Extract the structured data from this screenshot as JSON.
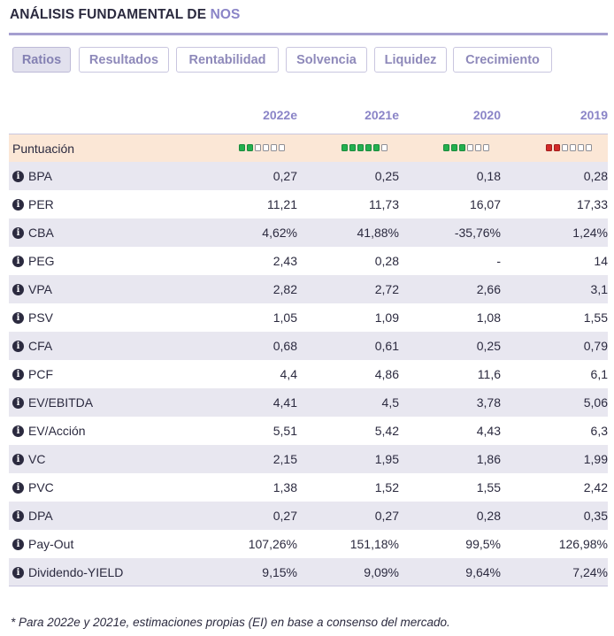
{
  "header": {
    "title": "ANÁLISIS FUNDAMENTAL DE",
    "ticker": "NOS"
  },
  "tabs": [
    "Ratios",
    "Resultados",
    "Rentabilidad",
    "Solvencia",
    "Liquidez",
    "Crecimiento"
  ],
  "active_tab": "Ratios",
  "years": [
    "2022e",
    "2021e",
    "2020",
    "2019"
  ],
  "score": {
    "label": "Puntuación",
    "levels": [
      {
        "filled": 2,
        "color": "green"
      },
      {
        "filled": 5,
        "color": "green"
      },
      {
        "filled": 3,
        "color": "green"
      },
      {
        "filled": 2,
        "color": "red"
      }
    ]
  },
  "rows": [
    {
      "label": "BPA",
      "values": [
        "0,27",
        "0,25",
        "0,18",
        "0,28"
      ]
    },
    {
      "label": "PER",
      "values": [
        "11,21",
        "11,73",
        "16,07",
        "17,33"
      ]
    },
    {
      "label": "CBA",
      "values": [
        "4,62%",
        "41,88%",
        "-35,76%",
        "1,24%"
      ]
    },
    {
      "label": "PEG",
      "values": [
        "2,43",
        "0,28",
        "-",
        "14"
      ]
    },
    {
      "label": "VPA",
      "values": [
        "2,82",
        "2,72",
        "2,66",
        "3,1"
      ]
    },
    {
      "label": "PSV",
      "values": [
        "1,05",
        "1,09",
        "1,08",
        "1,55"
      ]
    },
    {
      "label": "CFA",
      "values": [
        "0,68",
        "0,61",
        "0,25",
        "0,79"
      ]
    },
    {
      "label": "PCF",
      "values": [
        "4,4",
        "4,86",
        "11,6",
        "6,1"
      ]
    },
    {
      "label": "EV/EBITDA",
      "values": [
        "4,41",
        "4,5",
        "3,78",
        "5,06"
      ]
    },
    {
      "label": "EV/Acción",
      "values": [
        "5,51",
        "5,42",
        "4,43",
        "6,3"
      ]
    },
    {
      "label": "VC",
      "values": [
        "2,15",
        "1,95",
        "1,86",
        "1,99"
      ]
    },
    {
      "label": "PVC",
      "values": [
        "1,38",
        "1,52",
        "1,55",
        "2,42"
      ]
    },
    {
      "label": "DPA",
      "values": [
        "0,27",
        "0,27",
        "0,28",
        "0,35"
      ]
    },
    {
      "label": "Pay-Out",
      "values": [
        "107,26%",
        "151,18%",
        "99,5%",
        "126,98%"
      ]
    },
    {
      "label": "Dividendo-YIELD",
      "values": [
        "9,15%",
        "9,09%",
        "9,64%",
        "7,24%"
      ]
    }
  ],
  "footnote": "* Para 2022e y 2021e, estimaciones propias (EI) en base a consenso del mercado.",
  "colors": {
    "accent": "#8a84c7",
    "score_bg": "#fbe7d6",
    "alt_row": "#e8e7f0",
    "green": "#23b04f",
    "red": "#d32a28"
  }
}
